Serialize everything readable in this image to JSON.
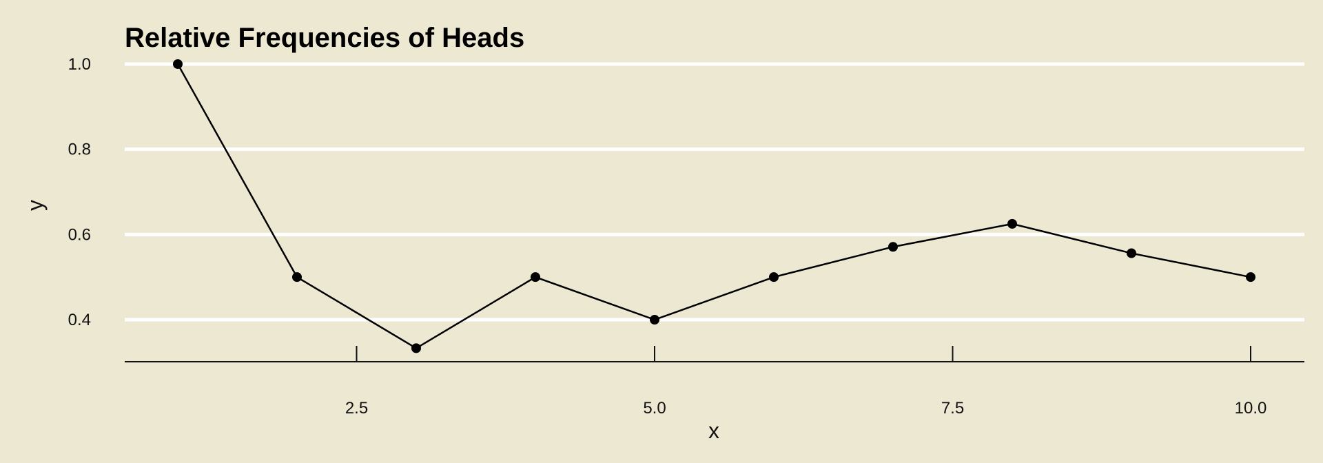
{
  "chart_data": {
    "type": "line",
    "title": "Relative Frequencies of Heads",
    "xlabel": "x",
    "ylabel": "y",
    "x": [
      1,
      2,
      3,
      4,
      5,
      6,
      7,
      8,
      9,
      10
    ],
    "y": [
      1.0,
      0.5,
      0.333,
      0.5,
      0.4,
      0.5,
      0.571,
      0.625,
      0.556,
      0.5
    ],
    "xlim": [
      0.82,
      10.18
    ],
    "ylim": [
      0.3,
      1.0
    ],
    "xticks": [
      2.5,
      5.0,
      7.5,
      10.0
    ],
    "xtick_labels": [
      "2.5",
      "5.0",
      "7.5",
      "10.0"
    ],
    "yticks": [
      0.4,
      0.6,
      0.8,
      1.0
    ],
    "ytick_labels": [
      "0.4",
      "0.6",
      "0.8",
      "1.0"
    ],
    "grid": "horizontal",
    "markers": true,
    "colors": {
      "background": "#ece8d2",
      "grid": "#ffffff",
      "line": "#000000"
    }
  }
}
